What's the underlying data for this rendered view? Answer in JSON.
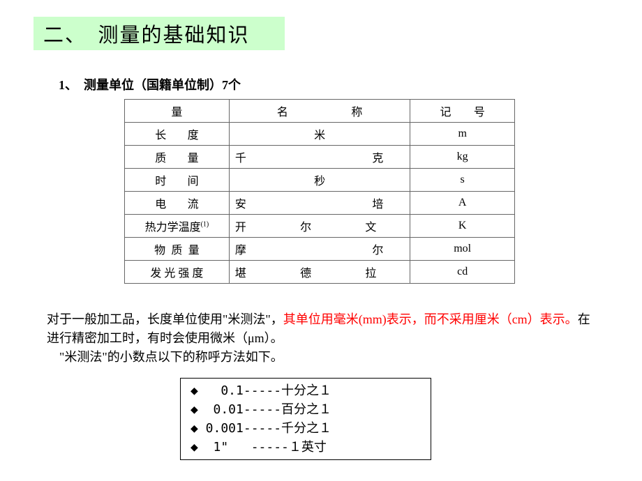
{
  "title": "二、　测量的基础知识",
  "subtitle": "1、　测量单位（国籍单位制）7个",
  "table": {
    "header": {
      "quantity": "量",
      "name_c1": "名",
      "name_c2": "称",
      "note_c1": "记",
      "note_c2": "号"
    },
    "rows": [
      {
        "q1": "长",
        "q2": "度",
        "name_single": "米",
        "symbol": "m"
      },
      {
        "q1": "质",
        "q2": "量",
        "n1": "千",
        "n2": "克",
        "symbol": "kg"
      },
      {
        "q1": "时",
        "q2": "间",
        "name_single": "秒",
        "symbol": "s"
      },
      {
        "q1": "电",
        "q2": "流",
        "n1": "安",
        "n2": "培",
        "symbol": "A"
      },
      {
        "q_full": "热力学温度",
        "sup": "(1)",
        "n1": "开",
        "n2": "尔",
        "n3": "文",
        "symbol": "K"
      },
      {
        "q1": "物",
        "q2": "质",
        "q3": "量",
        "n1": "摩",
        "n2": "尔",
        "symbol": "mol"
      },
      {
        "q_full": "发 光 强 度",
        "n1": "堪",
        "n2": "德",
        "n3": "拉",
        "symbol": "cd"
      }
    ]
  },
  "paragraph": {
    "p1": "对于一般加工品，长度单位使用\"米测法\"，",
    "p1_red": "其单位用毫米(mm)表示，而不采用厘米（cm）表示。",
    "p1_cont": "在进行精密加工时，有时会使用微米（μm）。",
    "p2": "　\"米测法\"的小数点以下的称呼方法如下。"
  },
  "fractions": [
    "◆   0.1-----十分之１",
    "◆  0.01-----百分之１",
    "◆ 0.001-----千分之１",
    "◆  1\"   -----１英寸"
  ]
}
